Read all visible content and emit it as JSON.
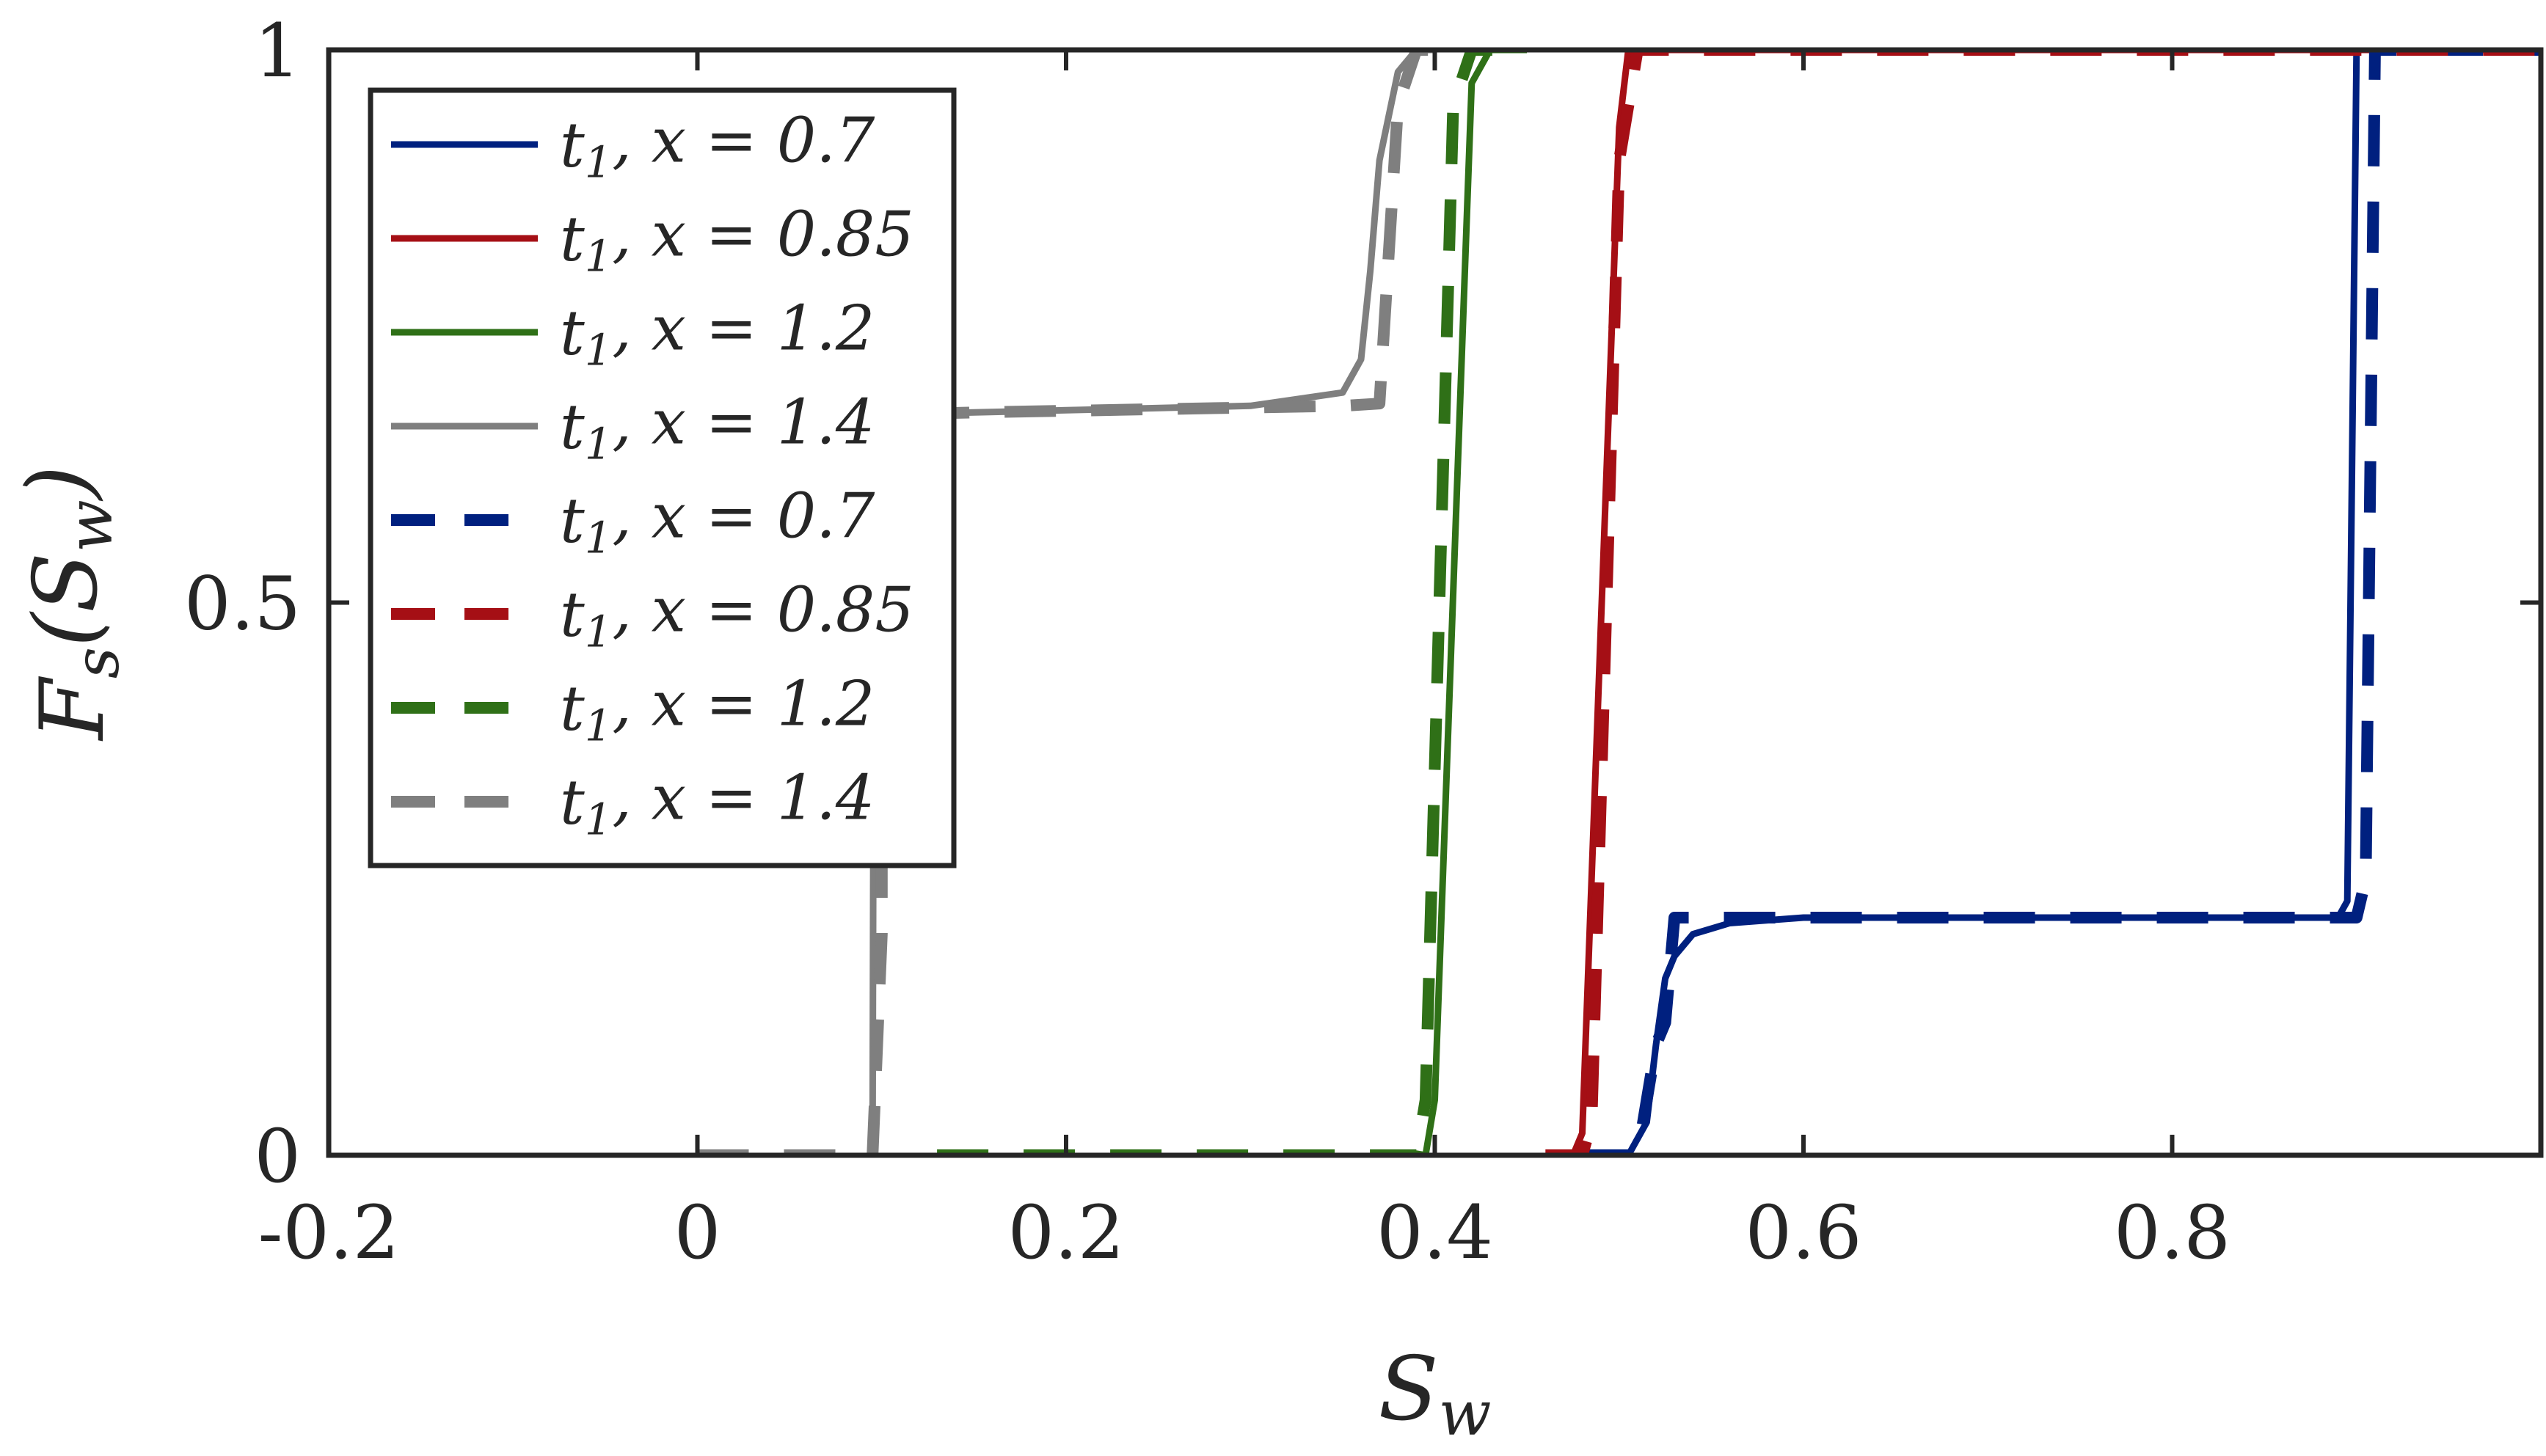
{
  "chart_data": {
    "type": "line",
    "xlabel": "S_w",
    "ylabel": "F_s(S_w)",
    "xlim": [
      -0.2,
      1.0
    ],
    "ylim": [
      0,
      1
    ],
    "xticks": [
      -0.2,
      0,
      0.2,
      0.4,
      0.6,
      0.8
    ],
    "xtick_labels": [
      "-0.2",
      "0",
      "0.2",
      "0.4",
      "0.6",
      "0.8"
    ],
    "yticks": [
      0,
      0.5,
      1
    ],
    "ytick_labels": [
      "0",
      "0.5",
      "1"
    ],
    "grid": false,
    "box": true,
    "legend_position": "top-left",
    "series": [
      {
        "name": "t_1, x = 0.7",
        "color": "#00207f",
        "style": "solid",
        "x": [
          0.48,
          0.505,
          0.515,
          0.52,
          0.525,
          0.53,
          0.54,
          0.56,
          0.6,
          0.7,
          0.8,
          0.89,
          0.895,
          0.9,
          0.92,
          1.0
        ],
        "y": [
          0,
          0,
          0.03,
          0.1,
          0.16,
          0.18,
          0.2,
          0.21,
          0.215,
          0.215,
          0.215,
          0.215,
          0.23,
          1,
          1,
          1
        ]
      },
      {
        "name": "t_1, x = 0.85",
        "color": "#a50f15",
        "style": "solid",
        "x": [
          0.475,
          0.48,
          0.5,
          0.505,
          0.6,
          0.8,
          1.0
        ],
        "y": [
          0,
          0.02,
          0.93,
          1,
          1,
          1,
          1
        ]
      },
      {
        "name": "t_1, x = 1.2",
        "color": "#2f7017",
        "style": "solid",
        "x": [
          0.395,
          0.4,
          0.42,
          0.43,
          0.45
        ],
        "y": [
          0,
          0.05,
          0.97,
          1,
          1
        ]
      },
      {
        "name": "t_1, x = 1.4",
        "color": "#7f7f7f",
        "style": "solid",
        "x": [
          0.095,
          0.096,
          0.15,
          0.2,
          0.3,
          0.35,
          0.36,
          0.365,
          0.37,
          0.38,
          0.39,
          0.4
        ],
        "y": [
          0,
          0.67,
          0.672,
          0.674,
          0.678,
          0.69,
          0.72,
          0.8,
          0.9,
          0.98,
          1,
          1
        ]
      },
      {
        "name": "t_1, x = 0.7",
        "color": "#00207f",
        "style": "dashed",
        "x": [
          0.48,
          0.51,
          0.515,
          0.52,
          0.525,
          0.53,
          0.6,
          0.7,
          0.8,
          0.9,
          0.905,
          0.91,
          0.92,
          1.0
        ],
        "y": [
          0,
          0,
          0.05,
          0.1,
          0.12,
          0.215,
          0.215,
          0.215,
          0.215,
          0.215,
          0.25,
          1,
          1,
          1
        ]
      },
      {
        "name": "t_1, x = 0.85",
        "color": "#a50f15",
        "style": "dashed",
        "x": [
          0.46,
          0.48,
          0.485,
          0.5,
          0.51,
          0.6,
          0.8,
          1.0
        ],
        "y": [
          0,
          0,
          0.03,
          0.9,
          1,
          1,
          1,
          1
        ]
      },
      {
        "name": "t_1, x = 1.2",
        "color": "#2f7017",
        "style": "dashed",
        "x": [
          0.13,
          0.25,
          0.39,
          0.395,
          0.41,
          0.42,
          0.435
        ],
        "y": [
          0,
          0,
          0,
          0.05,
          0.95,
          1,
          1
        ]
      },
      {
        "name": "t_1, x = 1.4",
        "color": "#7f7f7f",
        "style": "dashed",
        "x": [
          0.0,
          0.05,
          0.095,
          0.1,
          0.1,
          0.15,
          0.25,
          0.35,
          0.37,
          0.38,
          0.39,
          0.41
        ],
        "y": [
          0,
          0,
          0,
          0.2,
          0.67,
          0.672,
          0.675,
          0.678,
          0.68,
          0.95,
          1,
          1
        ]
      }
    ]
  }
}
